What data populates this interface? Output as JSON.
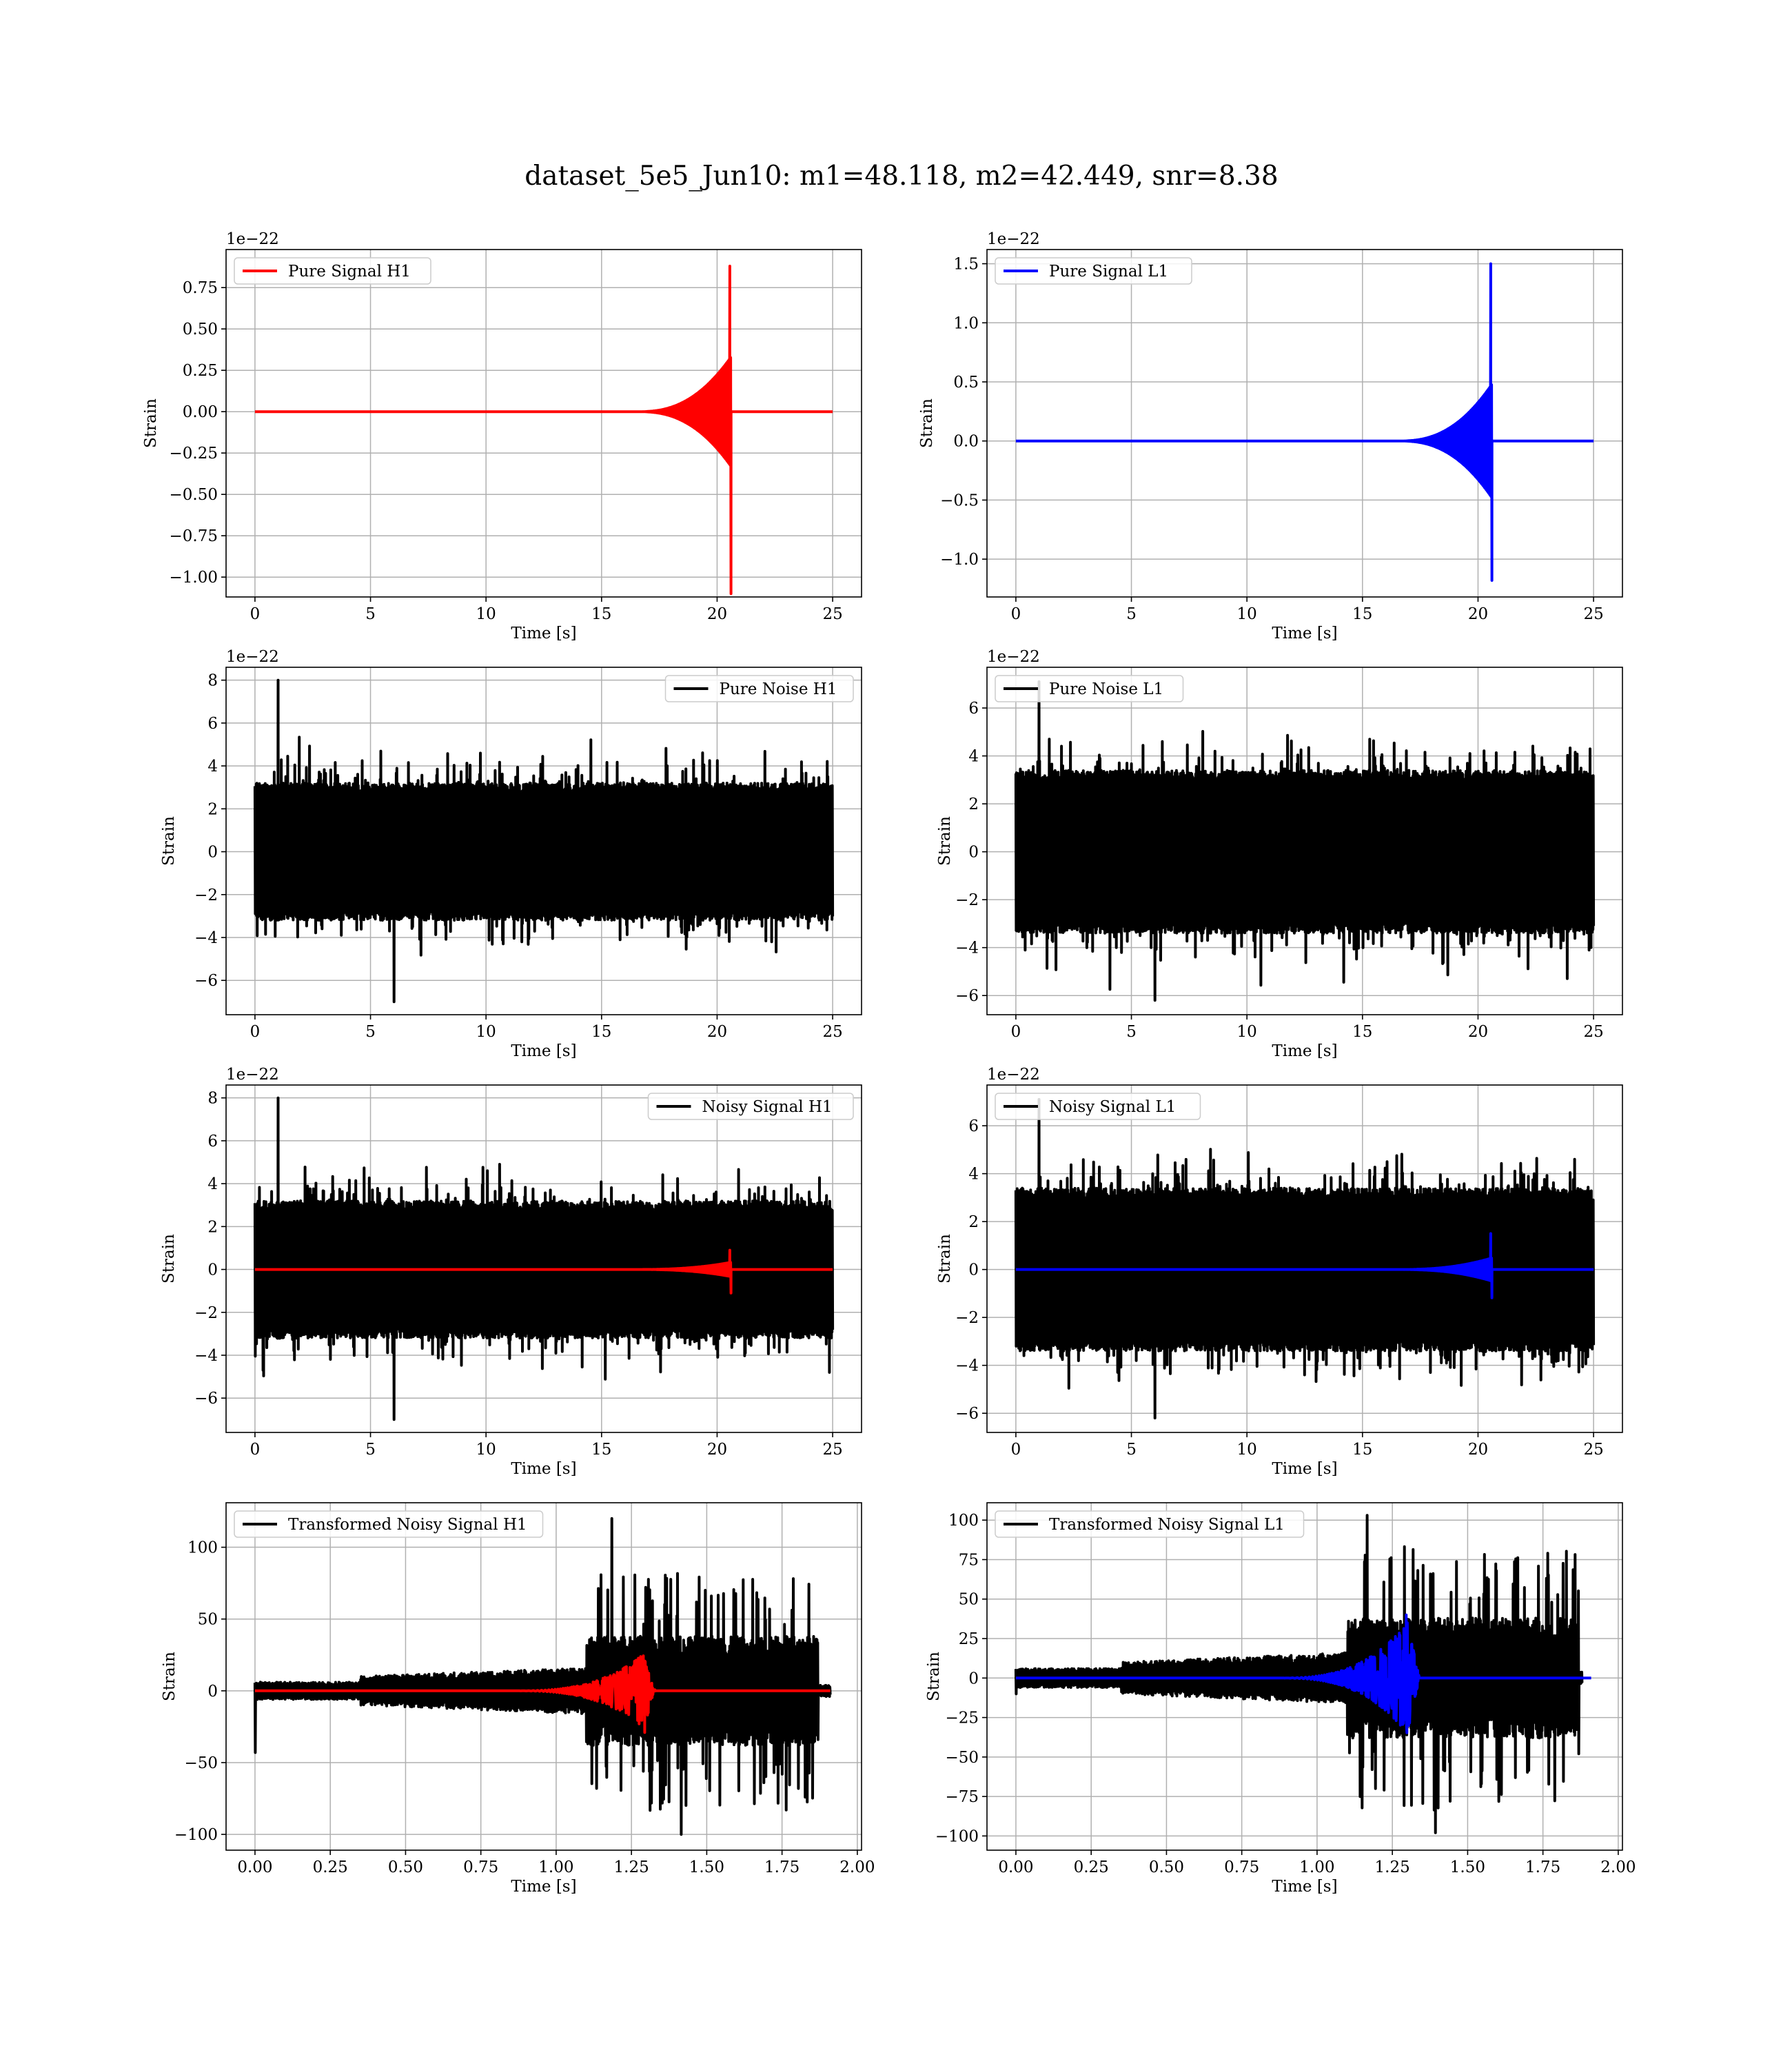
{
  "figure": {
    "suptitle": "dataset_5e5_Jun10: m1=48.118, m2=42.449, snr=8.38"
  },
  "colors": {
    "h1_signal": "#ff0000",
    "l1_signal": "#0000ff",
    "noise": "#000000",
    "grid": "#b0b0b0"
  },
  "chart_data": [
    {
      "type": "line",
      "id": "pure-signal-h1",
      "xlabel": "Time [s]",
      "ylabel": "Strain",
      "offset_text": "1e−22",
      "xlim": [
        -1.25,
        26.25
      ],
      "ylim": [
        -1.12,
        0.98
      ],
      "xticks": [
        0,
        5,
        10,
        15,
        20,
        25
      ],
      "xtick_labels": [
        "0",
        "5",
        "10",
        "15",
        "20",
        "25"
      ],
      "yticks": [
        -1.0,
        -0.75,
        -0.5,
        -0.25,
        0.0,
        0.25,
        0.5,
        0.75
      ],
      "ytick_labels": [
        "−1.00",
        "−0.75",
        "−0.50",
        "−0.25",
        "0.00",
        "0.25",
        "0.50",
        "0.75"
      ],
      "grid": true,
      "legend_position": "top-left",
      "series": [
        {
          "name": "Pure Signal H1",
          "color": "#ff0000",
          "kind": "chirp",
          "t_start": 0,
          "t_end": 25,
          "t_merge": 20.6,
          "peak_high": 0.88,
          "peak_low": -1.1,
          "envelope_pre": 0.33
        }
      ]
    },
    {
      "type": "line",
      "id": "pure-signal-l1",
      "xlabel": "Time [s]",
      "ylabel": "Strain",
      "offset_text": "1e−22",
      "xlim": [
        -1.25,
        26.25
      ],
      "ylim": [
        -1.32,
        1.62
      ],
      "xticks": [
        0,
        5,
        10,
        15,
        20,
        25
      ],
      "xtick_labels": [
        "0",
        "5",
        "10",
        "15",
        "20",
        "25"
      ],
      "yticks": [
        -1.0,
        -0.5,
        0.0,
        0.5,
        1.0,
        1.5
      ],
      "ytick_labels": [
        "−1.0",
        "−0.5",
        "0.0",
        "0.5",
        "1.0",
        "1.5"
      ],
      "grid": true,
      "legend_position": "top-left",
      "series": [
        {
          "name": "Pure Signal L1",
          "color": "#0000ff",
          "kind": "chirp",
          "t_start": 0,
          "t_end": 25,
          "t_merge": 20.6,
          "peak_high": 1.5,
          "peak_low": -1.18,
          "envelope_pre": 0.48
        }
      ]
    },
    {
      "type": "line",
      "id": "pure-noise-h1",
      "xlabel": "Time [s]",
      "ylabel": "Strain",
      "offset_text": "1e−22",
      "xlim": [
        -1.25,
        26.25
      ],
      "ylim": [
        -7.6,
        8.6
      ],
      "xticks": [
        0,
        5,
        10,
        15,
        20,
        25
      ],
      "xtick_labels": [
        "0",
        "5",
        "10",
        "15",
        "20",
        "25"
      ],
      "yticks": [
        -6,
        -4,
        -2,
        0,
        2,
        4,
        6,
        8
      ],
      "ytick_labels": [
        "−6",
        "−4",
        "−2",
        "0",
        "2",
        "4",
        "6",
        "8"
      ],
      "grid": true,
      "legend_position": "top-right",
      "series": [
        {
          "name": "Pure Noise H1",
          "color": "#000000",
          "kind": "noise",
          "t_start": 0,
          "t_end": 25,
          "band": 3.2,
          "spike_high": 8.0,
          "spike_low": -7.0
        }
      ]
    },
    {
      "type": "line",
      "id": "pure-noise-l1",
      "xlabel": "Time [s]",
      "ylabel": "Strain",
      "offset_text": "1e−22",
      "xlim": [
        -1.25,
        26.25
      ],
      "ylim": [
        -6.8,
        7.7
      ],
      "xticks": [
        0,
        5,
        10,
        15,
        20,
        25
      ],
      "xtick_labels": [
        "0",
        "5",
        "10",
        "15",
        "20",
        "25"
      ],
      "yticks": [
        -6,
        -4,
        -2,
        0,
        2,
        4,
        6
      ],
      "ytick_labels": [
        "−6",
        "−4",
        "−2",
        "0",
        "2",
        "4",
        "6"
      ],
      "grid": true,
      "legend_position": "top-left",
      "series": [
        {
          "name": "Pure Noise L1",
          "color": "#000000",
          "kind": "noise",
          "t_start": 0,
          "t_end": 25,
          "band": 3.4,
          "spike_high": 7.1,
          "spike_low": -6.2
        }
      ]
    },
    {
      "type": "line",
      "id": "noisy-signal-h1",
      "xlabel": "Time [s]",
      "ylabel": "Strain",
      "offset_text": "1e−22",
      "xlim": [
        -1.25,
        26.25
      ],
      "ylim": [
        -7.6,
        8.6
      ],
      "xticks": [
        0,
        5,
        10,
        15,
        20,
        25
      ],
      "xtick_labels": [
        "0",
        "5",
        "10",
        "15",
        "20",
        "25"
      ],
      "yticks": [
        -6,
        -4,
        -2,
        0,
        2,
        4,
        6,
        8
      ],
      "ytick_labels": [
        "−6",
        "−4",
        "−2",
        "0",
        "2",
        "4",
        "6",
        "8"
      ],
      "grid": true,
      "legend_position": "top-right",
      "series": [
        {
          "name": "Noisy Signal H1",
          "color": "#000000",
          "kind": "noise",
          "t_start": 0,
          "t_end": 25,
          "band": 3.2,
          "spike_high": 8.0,
          "spike_low": -7.0
        },
        {
          "name": "",
          "color": "#ff0000",
          "kind": "chirp",
          "t_start": 0,
          "t_end": 25,
          "t_merge": 20.6,
          "peak_high": 0.9,
          "peak_low": -1.1,
          "envelope_pre": 0.33
        }
      ]
    },
    {
      "type": "line",
      "id": "noisy-signal-l1",
      "xlabel": "Time [s]",
      "ylabel": "Strain",
      "offset_text": "1e−22",
      "xlim": [
        -1.25,
        26.25
      ],
      "ylim": [
        -6.8,
        7.7
      ],
      "xticks": [
        0,
        5,
        10,
        15,
        20,
        25
      ],
      "xtick_labels": [
        "0",
        "5",
        "10",
        "15",
        "20",
        "25"
      ],
      "yticks": [
        -6,
        -4,
        -2,
        0,
        2,
        4,
        6
      ],
      "ytick_labels": [
        "−6",
        "−4",
        "−2",
        "0",
        "2",
        "4",
        "6"
      ],
      "grid": true,
      "legend_position": "top-left",
      "series": [
        {
          "name": "Noisy Signal L1",
          "color": "#000000",
          "kind": "noise",
          "t_start": 0,
          "t_end": 25,
          "band": 3.4,
          "spike_high": 7.1,
          "spike_low": -6.2
        },
        {
          "name": "",
          "color": "#0000ff",
          "kind": "chirp",
          "t_start": 0,
          "t_end": 25,
          "t_merge": 20.6,
          "peak_high": 1.5,
          "peak_low": -1.18,
          "envelope_pre": 0.48
        }
      ]
    },
    {
      "type": "line",
      "id": "transformed-noisy-signal-h1",
      "xlabel": "Time [s]",
      "ylabel": "Strain",
      "offset_text": "",
      "xlim": [
        -0.096,
        2.014
      ],
      "ylim": [
        -111,
        131
      ],
      "xticks": [
        0.0,
        0.25,
        0.5,
        0.75,
        1.0,
        1.25,
        1.5,
        1.75,
        2.0
      ],
      "xtick_labels": [
        "0.00",
        "0.25",
        "0.50",
        "0.75",
        "1.00",
        "1.25",
        "1.50",
        "1.75",
        "2.00"
      ],
      "yticks": [
        -100,
        -50,
        0,
        50,
        100
      ],
      "ytick_labels": [
        "−100",
        "−50",
        "0",
        "50",
        "100"
      ],
      "grid": true,
      "legend_position": "top-left",
      "series": [
        {
          "name": "Transformed Noisy Signal H1",
          "color": "#000000",
          "kind": "tnoise",
          "t_start": 0,
          "t_end": 1.91,
          "t_burst": 1.1,
          "t_burst_end": 1.87,
          "spike_high": 120,
          "spike_low": -100,
          "first_dip": -43
        },
        {
          "name": "",
          "color": "#ff0000",
          "kind": "tchirp",
          "t_start": 0,
          "t_end": 1.91,
          "t_merge": 1.29,
          "peak_high": 22,
          "peak_low": -29
        }
      ]
    },
    {
      "type": "line",
      "id": "transformed-noisy-signal-l1",
      "xlabel": "Time [s]",
      "ylabel": "Strain",
      "offset_text": "",
      "xlim": [
        -0.096,
        2.014
      ],
      "ylim": [
        -109,
        111
      ],
      "xticks": [
        0.0,
        0.25,
        0.5,
        0.75,
        1.0,
        1.25,
        1.5,
        1.75,
        2.0
      ],
      "xtick_labels": [
        "0.00",
        "0.25",
        "0.50",
        "0.75",
        "1.00",
        "1.25",
        "1.50",
        "1.75",
        "2.00"
      ],
      "yticks": [
        -100,
        -75,
        -50,
        -25,
        0,
        25,
        50,
        75,
        100
      ],
      "ytick_labels": [
        "−100",
        "−75",
        "−50",
        "−25",
        "0",
        "25",
        "50",
        "75",
        "100"
      ],
      "grid": true,
      "legend_position": "top-left",
      "series": [
        {
          "name": "Transformed Noisy Signal L1",
          "color": "#000000",
          "kind": "tnoise",
          "t_start": 0,
          "t_end": 1.88,
          "t_burst": 1.1,
          "t_burst_end": 1.87,
          "spike_high": 103,
          "spike_low": -98,
          "first_dip": -10
        },
        {
          "name": "",
          "color": "#0000ff",
          "kind": "tchirp",
          "t_start": 0,
          "t_end": 1.91,
          "t_merge": 1.3,
          "peak_high": 40,
          "peak_low": -30
        }
      ]
    }
  ]
}
